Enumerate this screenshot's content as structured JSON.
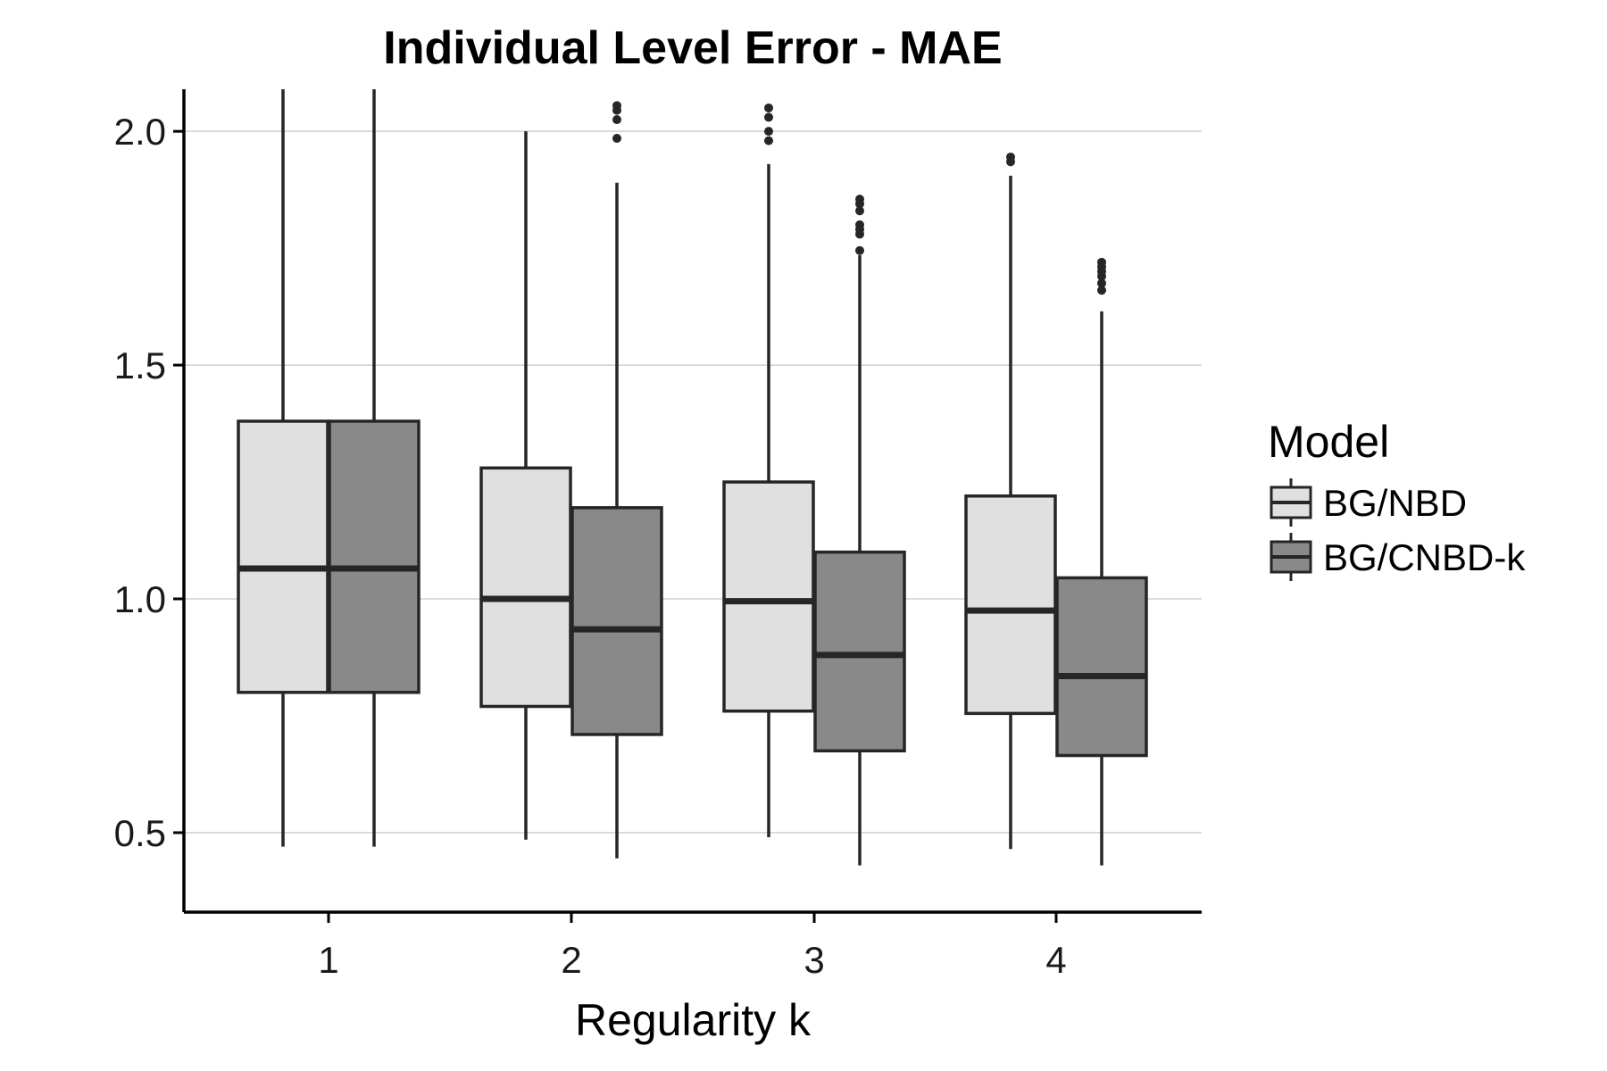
{
  "chart_data": {
    "type": "box",
    "title": "Individual Level Error - MAE",
    "xlabel": "Regularity k",
    "ylabel": "",
    "categories": [
      "1",
      "2",
      "3",
      "4"
    ],
    "ylim": [
      0.33,
      2.09
    ],
    "yticks": [
      0.5,
      1.0,
      1.5,
      2.0
    ],
    "ytick_labels": [
      "0.5",
      "1.0",
      "1.5",
      "2.0"
    ],
    "grid": "horizontal",
    "legend": {
      "title": "Model",
      "position": "right"
    },
    "series": [
      {
        "name": "BG/NBD",
        "color": "#e0e0e0",
        "boxes": [
          {
            "category": "1",
            "whisker_low": 0.47,
            "q1": 0.8,
            "median": 1.065,
            "q3": 1.38,
            "whisker_high": 2.09,
            "outliers": []
          },
          {
            "category": "2",
            "whisker_low": 0.485,
            "q1": 0.77,
            "median": 1.0,
            "q3": 1.28,
            "whisker_high": 2.0,
            "outliers": []
          },
          {
            "category": "3",
            "whisker_low": 0.49,
            "q1": 0.76,
            "median": 0.995,
            "q3": 1.25,
            "whisker_high": 1.93,
            "outliers": [
              1.98,
              2.0,
              2.03,
              2.05
            ]
          },
          {
            "category": "4",
            "whisker_low": 0.465,
            "q1": 0.755,
            "median": 0.975,
            "q3": 1.22,
            "whisker_high": 1.905,
            "outliers": [
              1.935,
              1.945
            ]
          }
        ]
      },
      {
        "name": "BG/CNBD-k",
        "color": "#898989",
        "boxes": [
          {
            "category": "1",
            "whisker_low": 0.47,
            "q1": 0.8,
            "median": 1.065,
            "q3": 1.38,
            "whisker_high": 2.09,
            "outliers": []
          },
          {
            "category": "2",
            "whisker_low": 0.445,
            "q1": 0.71,
            "median": 0.935,
            "q3": 1.195,
            "whisker_high": 1.89,
            "outliers": [
              1.985,
              2.025,
              2.045,
              2.055
            ]
          },
          {
            "category": "3",
            "whisker_low": 0.43,
            "q1": 0.675,
            "median": 0.88,
            "q3": 1.1,
            "whisker_high": 1.735,
            "outliers": [
              1.745,
              1.78,
              1.79,
              1.8,
              1.83,
              1.845,
              1.855
            ]
          },
          {
            "category": "4",
            "whisker_low": 0.43,
            "q1": 0.665,
            "median": 0.835,
            "q3": 1.045,
            "whisker_high": 1.615,
            "outliers": [
              1.66,
              1.675,
              1.69,
              1.7,
              1.71,
              1.72
            ]
          }
        ]
      }
    ]
  }
}
